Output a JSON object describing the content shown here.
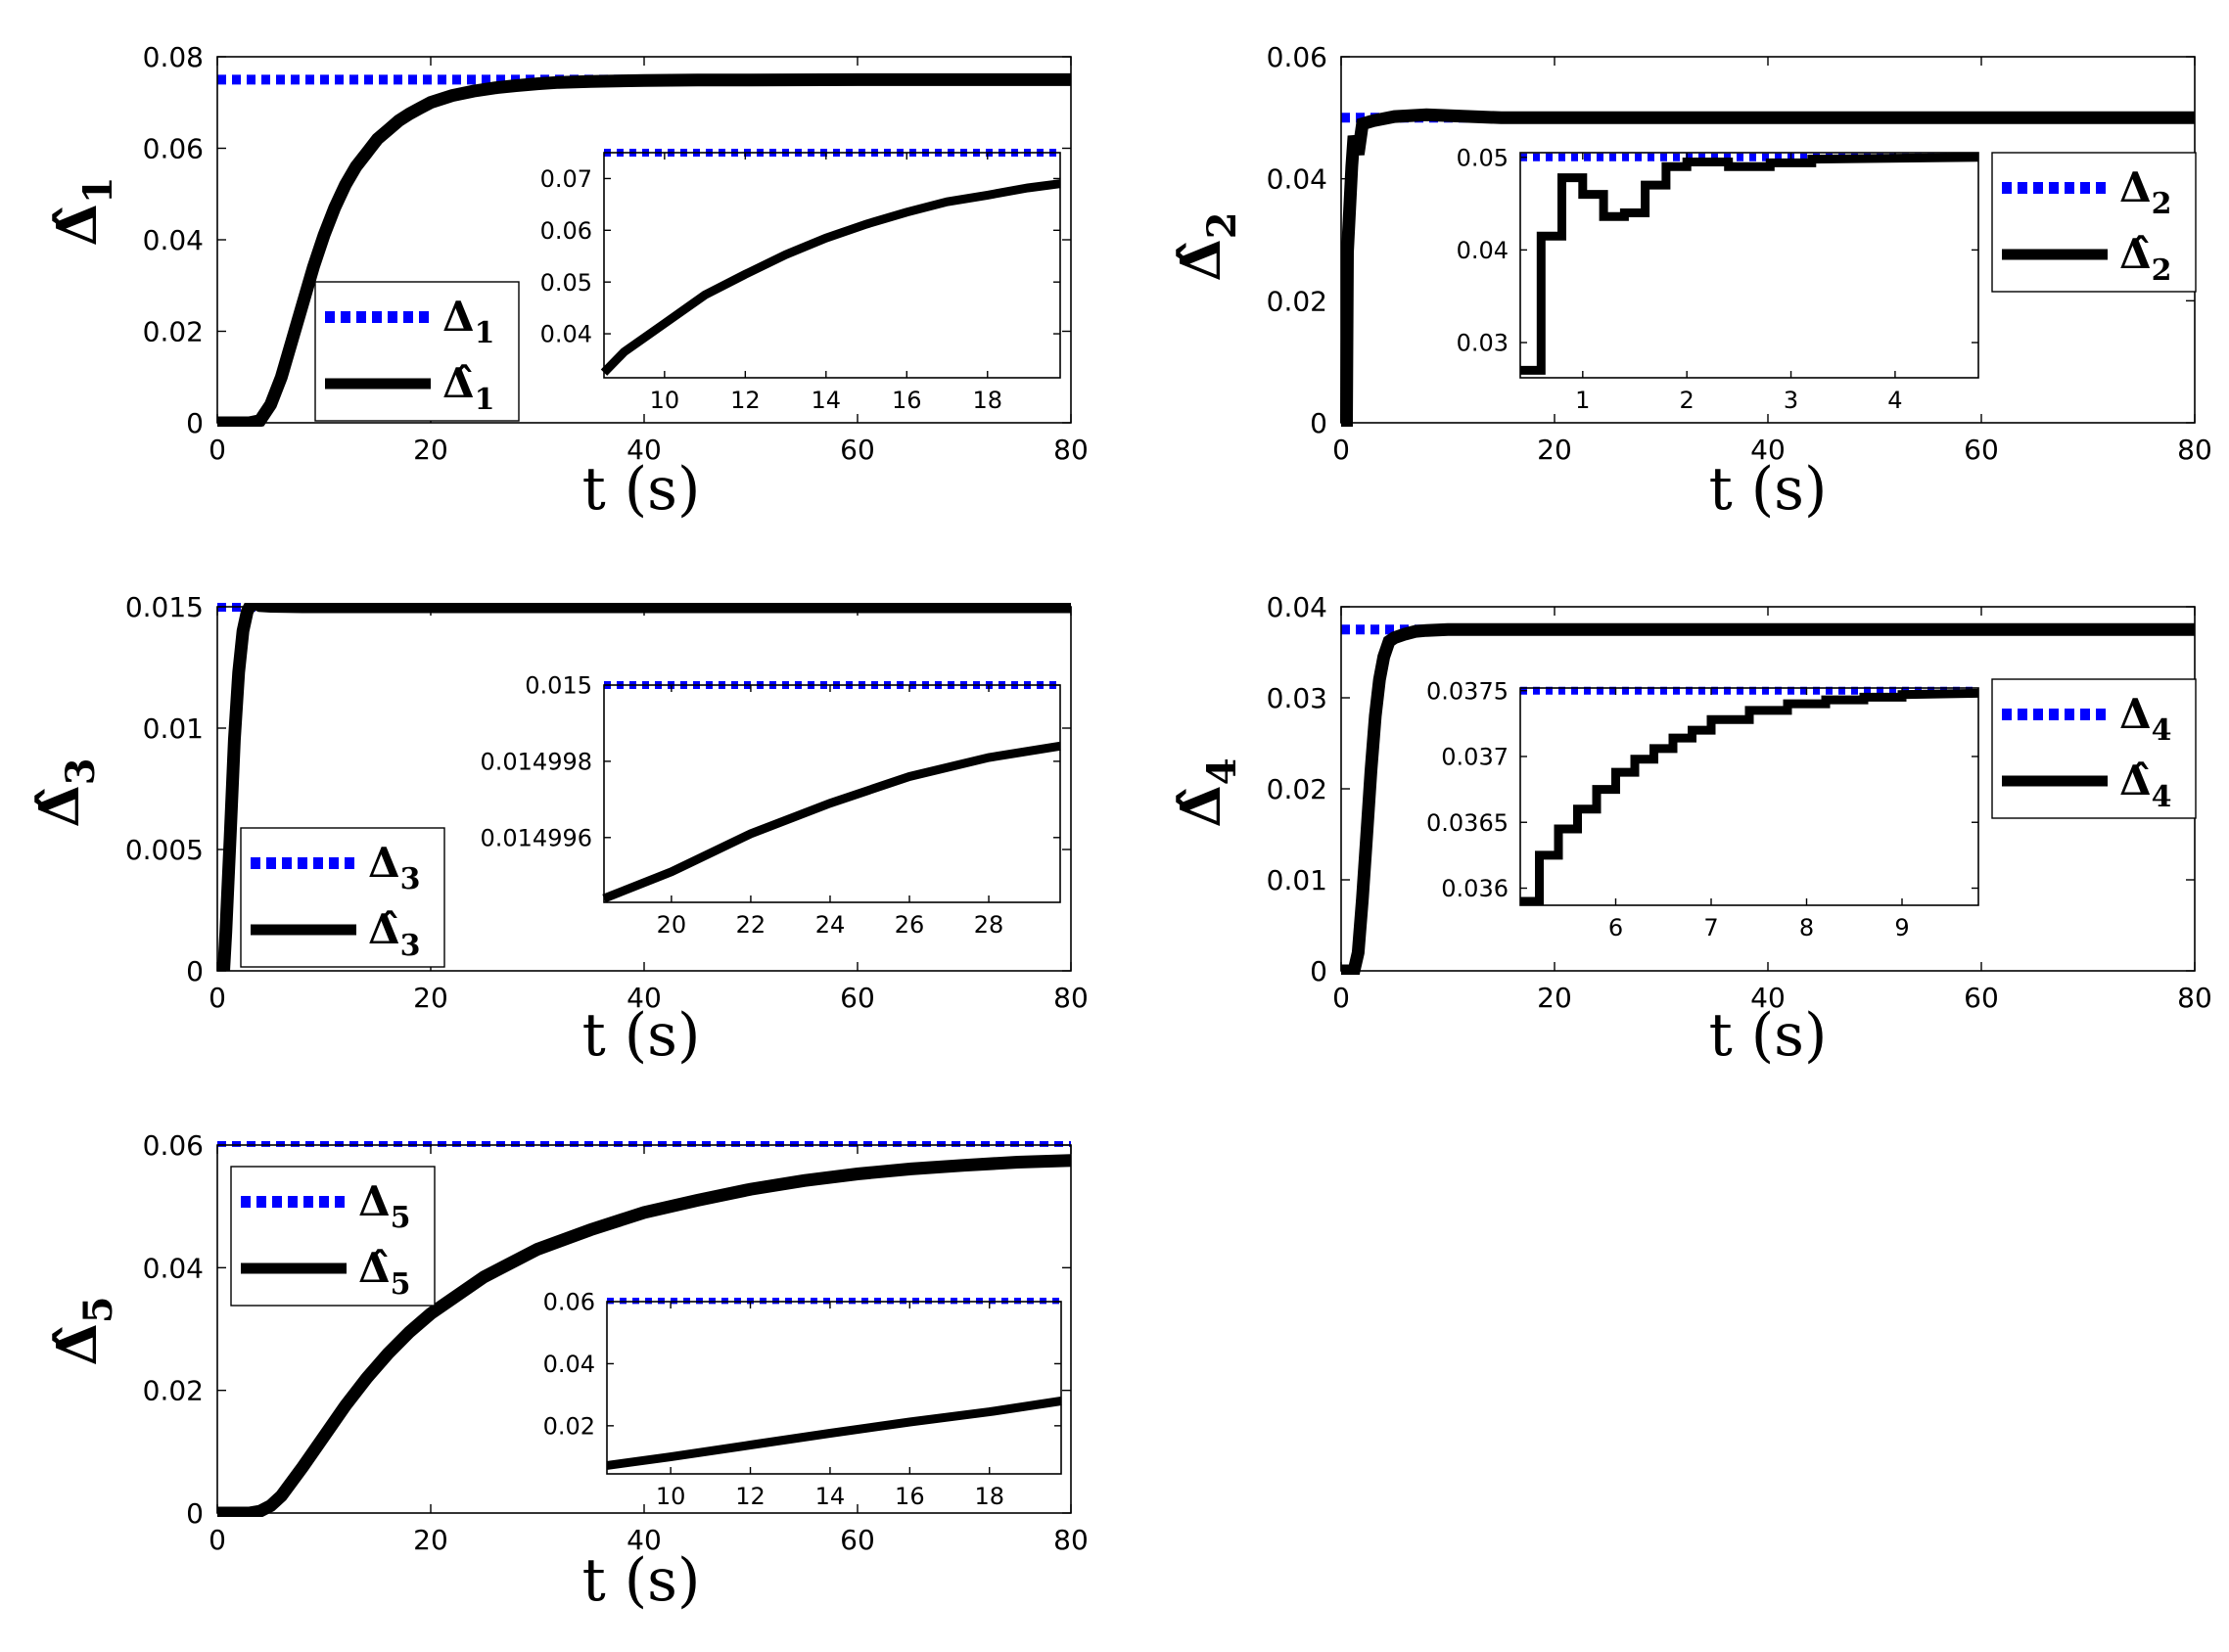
{
  "figure": {
    "background": "#ffffff"
  },
  "chart_data": [
    {
      "id": "p1",
      "type": "line",
      "xlabel": "t (s)",
      "ylabel": "Δ̂1",
      "xlim": [
        0,
        80
      ],
      "ylim": [
        0,
        0.08
      ],
      "xticks": [
        "0",
        "20",
        "40",
        "60",
        "80"
      ],
      "yticks": [
        "0",
        "0.02",
        "0.04",
        "0.06",
        "0.08"
      ],
      "legend": {
        "placement": "lower-center",
        "entries": [
          "Δ1",
          "Δ̂1"
        ]
      },
      "series": [
        {
          "name": "Δ1",
          "color": "#0000ff",
          "style": "dotted",
          "x": [
            0,
            80
          ],
          "y": [
            0.075,
            0.075
          ]
        },
        {
          "name": "Δ̂1",
          "color": "#000000",
          "style": "solid",
          "x": [
            0,
            3,
            4,
            5,
            6,
            7,
            8,
            9,
            10,
            11,
            12,
            13,
            14,
            15,
            16,
            17,
            18,
            19,
            20,
            22,
            24,
            26,
            28,
            30,
            32,
            35,
            40,
            45,
            50,
            60,
            70,
            80
          ],
          "y": [
            0,
            0,
            0.0005,
            0.004,
            0.01,
            0.018,
            0.026,
            0.034,
            0.041,
            0.047,
            0.052,
            0.056,
            0.059,
            0.062,
            0.064,
            0.066,
            0.0675,
            0.0688,
            0.07,
            0.0715,
            0.0725,
            0.0732,
            0.0737,
            0.0741,
            0.0744,
            0.0746,
            0.0748,
            0.0749,
            0.0749,
            0.075,
            0.075,
            0.075
          ]
        }
      ],
      "inset": {
        "xlim": [
          8.5,
          19.8
        ],
        "ylim": [
          0.0315,
          0.075
        ],
        "xticks": [
          "10",
          "12",
          "14",
          "16",
          "18"
        ],
        "yticks": [
          "0.04",
          "0.05",
          "0.06",
          "0.07"
        ],
        "series": [
          {
            "color": "#0000ff",
            "style": "dotted",
            "x": [
              8.5,
              19.8
            ],
            "y": [
              0.075,
              0.075
            ]
          },
          {
            "color": "#000000",
            "style": "solid",
            "x": [
              8.5,
              9,
              10,
              11,
              12,
              13,
              14,
              15,
              16,
              17,
              18,
              19,
              19.8
            ],
            "y": [
              0.0325,
              0.0365,
              0.042,
              0.0475,
              0.0515,
              0.0553,
              0.0585,
              0.0612,
              0.0635,
              0.0655,
              0.0668,
              0.0682,
              0.069
            ]
          }
        ]
      }
    },
    {
      "id": "p2",
      "type": "line",
      "xlabel": "t (s)",
      "ylabel": "Δ̂2",
      "xlim": [
        0,
        80
      ],
      "ylim": [
        0,
        0.06
      ],
      "xticks": [
        "0",
        "20",
        "40",
        "60",
        "80"
      ],
      "yticks": [
        "0",
        "0.02",
        "0.04",
        "0.06"
      ],
      "legend": {
        "placement": "upper-right",
        "entries": [
          "Δ2",
          "Δ̂2"
        ]
      },
      "series": [
        {
          "name": "Δ2",
          "color": "#0000ff",
          "style": "dotted",
          "x": [
            0,
            80
          ],
          "y": [
            0.05,
            0.05
          ]
        },
        {
          "name": "Δ̂2",
          "color": "#000000",
          "style": "solid",
          "x": [
            0,
            0.5,
            0.6,
            1.0,
            1.2,
            1.6,
            2,
            3,
            5,
            8,
            15,
            80
          ],
          "y": [
            0,
            0,
            0.028,
            0.042,
            0.047,
            0.044,
            0.049,
            0.0495,
            0.0502,
            0.0505,
            0.05,
            0.05
          ]
        }
      ],
      "inset": {
        "xlim": [
          0.4,
          4.8
        ],
        "ylim": [
          0.0262,
          0.0505
        ],
        "xticks": [
          "1",
          "2",
          "3",
          "4"
        ],
        "yticks": [
          "0.03",
          "0.04",
          "0.05"
        ],
        "series": [
          {
            "color": "#0000ff",
            "style": "dotted",
            "x": [
              0.4,
              4.8
            ],
            "y": [
              0.05,
              0.05
            ]
          },
          {
            "color": "#000000",
            "style": "solid",
            "x": [
              0.4,
              0.6,
              0.6,
              0.8,
              0.8,
              1.0,
              1.0,
              1.2,
              1.2,
              1.4,
              1.4,
              1.6,
              1.6,
              1.8,
              1.8,
              2.0,
              2.0,
              2.4,
              2.4,
              2.8,
              2.8,
              3.2,
              3.2,
              4.8
            ],
            "y": [
              0.027,
              0.027,
              0.0415,
              0.0415,
              0.0478,
              0.0478,
              0.046,
              0.046,
              0.0436,
              0.0436,
              0.044,
              0.044,
              0.047,
              0.047,
              0.049,
              0.049,
              0.0495,
              0.0495,
              0.049,
              0.049,
              0.0494,
              0.0494,
              0.0498,
              0.05
            ]
          }
        ]
      }
    },
    {
      "id": "p3",
      "type": "line",
      "xlabel": "t (s)",
      "ylabel": "Δ̂3",
      "xlim": [
        0,
        80
      ],
      "ylim": [
        0,
        0.015
      ],
      "xticks": [
        "0",
        "20",
        "40",
        "60",
        "80"
      ],
      "yticks": [
        "0",
        "0.005",
        "0.01",
        "0.015"
      ],
      "legend": {
        "placement": "lower-left",
        "entries": [
          "Δ3",
          "Δ̂3"
        ]
      },
      "series": [
        {
          "name": "Δ3",
          "color": "#0000ff",
          "style": "dotted",
          "x": [
            0,
            80
          ],
          "y": [
            0.015,
            0.015
          ]
        },
        {
          "name": "Δ̂3",
          "color": "#000000",
          "style": "solid",
          "x": [
            0.6,
            0.8,
            1.2,
            1.6,
            2.0,
            2.4,
            2.8,
            3.2,
            3.6,
            4.0,
            5,
            8,
            15,
            80
          ],
          "y": [
            0,
            0.0016,
            0.0055,
            0.0095,
            0.0123,
            0.014,
            0.0148,
            0.01515,
            0.01512,
            0.01505,
            0.01502,
            0.015,
            0.015,
            0.015
          ]
        }
      ],
      "inset": {
        "xlim": [
          18.3,
          29.8
        ],
        "ylim": [
          0.0149943,
          0.015
        ],
        "xticks": [
          "20",
          "22",
          "24",
          "26",
          "28"
        ],
        "yticks": [
          "0.014996",
          "0.014998",
          "0.015"
        ],
        "series": [
          {
            "color": "#0000ff",
            "style": "dotted",
            "x": [
              18.3,
              29.8
            ],
            "y": [
              0.015,
              0.015
            ]
          },
          {
            "color": "#000000",
            "style": "solid",
            "x": [
              18.3,
              20,
              22,
              24,
              26,
              28,
              29.8
            ],
            "y": [
              0.0149944,
              0.0149951,
              0.0149961,
              0.0149969,
              0.0149976,
              0.0149981,
              0.0149984
            ]
          }
        ]
      }
    },
    {
      "id": "p4",
      "type": "line",
      "xlabel": "t (s)",
      "ylabel": "Δ̂4",
      "xlim": [
        0,
        80
      ],
      "ylim": [
        0,
        0.04
      ],
      "xticks": [
        "0",
        "20",
        "40",
        "60",
        "80"
      ],
      "yticks": [
        "0",
        "0.01",
        "0.02",
        "0.03",
        "0.04"
      ],
      "legend": {
        "placement": "upper-right",
        "entries": [
          "Δ4",
          "Δ̂4"
        ]
      },
      "series": [
        {
          "name": "Δ4",
          "color": "#0000ff",
          "style": "dotted",
          "x": [
            0,
            80
          ],
          "y": [
            0.0375,
            0.0375
          ]
        },
        {
          "name": "Δ̂4",
          "color": "#000000",
          "style": "solid",
          "x": [
            0,
            1.2,
            1.6,
            2.0,
            2.4,
            2.8,
            3.2,
            3.6,
            4.0,
            4.5,
            5,
            6,
            7,
            8,
            10,
            80
          ],
          "y": [
            0,
            0,
            0.002,
            0.008,
            0.015,
            0.022,
            0.028,
            0.032,
            0.0345,
            0.0362,
            0.0366,
            0.037,
            0.0373,
            0.0374,
            0.0375,
            0.0375
          ]
        }
      ],
      "inset": {
        "xlim": [
          5.0,
          9.8
        ],
        "ylim": [
          0.03587,
          0.03752
        ],
        "xticks": [
          "6",
          "7",
          "8",
          "9"
        ],
        "yticks": [
          "0.036",
          "0.0365",
          "0.037",
          "0.0375"
        ],
        "series": [
          {
            "color": "#0000ff",
            "style": "dotted",
            "x": [
              5.0,
              9.8
            ],
            "y": [
              0.0375,
              0.0375
            ]
          },
          {
            "color": "#000000",
            "style": "solid",
            "x": [
              5.0,
              5.2,
              5.2,
              5.4,
              5.4,
              5.6,
              5.6,
              5.8,
              5.8,
              6.0,
              6.0,
              6.2,
              6.2,
              6.4,
              6.4,
              6.6,
              6.6,
              6.8,
              6.8,
              7.0,
              7.0,
              7.4,
              7.4,
              7.8,
              7.8,
              8.2,
              8.2,
              8.6,
              8.6,
              9.0,
              9.0,
              9.8
            ],
            "y": [
              0.0359,
              0.0359,
              0.03625,
              0.03625,
              0.03645,
              0.03645,
              0.0366,
              0.0366,
              0.03675,
              0.03675,
              0.03688,
              0.03688,
              0.03698,
              0.03698,
              0.03706,
              0.03706,
              0.03714,
              0.03714,
              0.0372,
              0.0372,
              0.03728,
              0.03728,
              0.03735,
              0.03735,
              0.0374,
              0.0374,
              0.03743,
              0.03743,
              0.03745,
              0.03745,
              0.03747,
              0.03748
            ]
          }
        ]
      }
    },
    {
      "id": "p5",
      "type": "line",
      "xlabel": "t (s)",
      "ylabel": "Δ̂5",
      "xlim": [
        0,
        80
      ],
      "ylim": [
        0,
        0.06
      ],
      "xticks": [
        "0",
        "20",
        "40",
        "60",
        "80"
      ],
      "yticks": [
        "0",
        "0.02",
        "0.04",
        "0.06"
      ],
      "legend": {
        "placement": "upper-left",
        "entries": [
          "Δ5",
          "Δ̂5"
        ]
      },
      "series": [
        {
          "name": "Δ5",
          "color": "#0000ff",
          "style": "dotted",
          "x": [
            0,
            80
          ],
          "y": [
            0.0605,
            0.0605
          ]
        },
        {
          "name": "Δ̂5",
          "color": "#000000",
          "style": "solid",
          "x": [
            0,
            3,
            4,
            5,
            6,
            8,
            10,
            12,
            14,
            16,
            18,
            20,
            25,
            30,
            35,
            40,
            45,
            50,
            55,
            60,
            65,
            70,
            75,
            80
          ],
          "y": [
            0,
            0,
            0.0003,
            0.0012,
            0.0028,
            0.0075,
            0.0125,
            0.0175,
            0.022,
            0.026,
            0.0295,
            0.0325,
            0.0385,
            0.043,
            0.0462,
            0.049,
            0.051,
            0.0528,
            0.0542,
            0.0553,
            0.0561,
            0.0567,
            0.0572,
            0.0575
          ]
        }
      ],
      "inset": {
        "xlim": [
          8.4,
          19.8
        ],
        "ylim": [
          0.0045,
          0.06
        ],
        "xticks": [
          "10",
          "12",
          "14",
          "16",
          "18"
        ],
        "yticks": [
          "0.02",
          "0.04",
          "0.06"
        ],
        "series": [
          {
            "color": "#0000ff",
            "style": "dotted",
            "x": [
              8.4,
              19.8
            ],
            "y": [
              0.0605,
              0.0605
            ]
          },
          {
            "color": "#000000",
            "style": "solid",
            "x": [
              8.4,
              10,
              12,
              14,
              16,
              18,
              19.8
            ],
            "y": [
              0.0072,
              0.01,
              0.0138,
              0.0176,
              0.0212,
              0.0245,
              0.028
            ]
          }
        ]
      }
    }
  ]
}
